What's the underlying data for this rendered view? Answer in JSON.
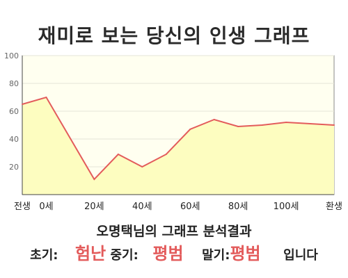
{
  "title": "재미로 보는 당신의 인생 그래프",
  "chart_data": {
    "type": "area",
    "x": [
      -10,
      0,
      20,
      30,
      40,
      50,
      60,
      70,
      80,
      90,
      100,
      110,
      120
    ],
    "values": [
      65,
      70,
      11,
      29,
      20,
      29,
      47,
      54,
      49,
      50,
      52,
      51,
      50
    ],
    "ylim": [
      0,
      100
    ],
    "yticks": [
      20,
      40,
      60,
      80,
      100
    ],
    "xticks": [
      {
        "x": -10,
        "label": "전생"
      },
      {
        "x": 0,
        "label": "0세"
      },
      {
        "x": 20,
        "label": "20세"
      },
      {
        "x": 40,
        "label": "40세"
      },
      {
        "x": 60,
        "label": "60세"
      },
      {
        "x": 80,
        "label": "80세"
      },
      {
        "x": 100,
        "label": "100세"
      },
      {
        "x": 120,
        "label": "환생"
      }
    ],
    "grid": true,
    "colors": {
      "line": "#e35b5b",
      "fill": "#fdfdc0",
      "plot_bg": "#fffff0",
      "grid": "#e6e6d8"
    }
  },
  "result": {
    "heading": "오명택님의 그래프 분석결과",
    "early_label": "초기:",
    "early_value": "험난",
    "mid_label": "중기:",
    "mid_value": "평범",
    "late_label": "말기:",
    "late_value": "평범",
    "suffix": "입니다"
  }
}
